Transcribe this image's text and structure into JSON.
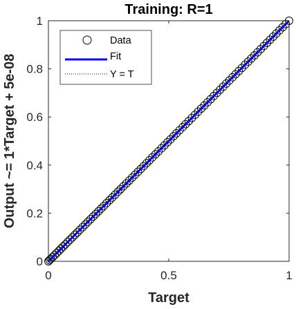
{
  "chart_data": {
    "type": "scatter",
    "title": "Training: R=1",
    "xlabel": "Target",
    "ylabel": "Output ~= 1*Target + 5e-08",
    "xlim": [
      0,
      1
    ],
    "ylim": [
      0,
      1
    ],
    "x_ticks": [
      "0",
      "0.5",
      "1"
    ],
    "y_ticks": [
      "0",
      "0.2",
      "0.4",
      "0.6",
      "0.8",
      "1"
    ],
    "grid": false,
    "legend_position": "top-left",
    "legend": [
      {
        "label": "Data",
        "style": "circle-marker"
      },
      {
        "label": "Fit",
        "style": "solid-line"
      },
      {
        "label": "Y = T",
        "style": "dotted-line"
      }
    ],
    "series": [
      {
        "name": "Data",
        "x": [
          0.0,
          0.005,
          0.01,
          0.018,
          0.026,
          0.035,
          0.044,
          0.052,
          0.061,
          0.07,
          0.08,
          0.09,
          0.1,
          0.11,
          0.12,
          0.131,
          0.142,
          0.153,
          0.164,
          0.175,
          0.186,
          0.197,
          0.208,
          0.219,
          0.23,
          0.242,
          0.254,
          0.265,
          0.277,
          0.289,
          0.3,
          0.312,
          0.324,
          0.336,
          0.348,
          0.36,
          0.372,
          0.384,
          0.396,
          0.408,
          0.42,
          0.432,
          0.445,
          0.457,
          0.47,
          0.482,
          0.495,
          0.507,
          0.52,
          0.532,
          0.545,
          0.558,
          0.57,
          0.583,
          0.596,
          0.609,
          0.622,
          0.635,
          0.648,
          0.661,
          0.674,
          0.687,
          0.7,
          0.713,
          0.726,
          0.739,
          0.752,
          0.765,
          0.778,
          0.791,
          0.804,
          0.817,
          0.83,
          0.843,
          0.856,
          0.869,
          0.882,
          0.895,
          0.908,
          0.921,
          0.934,
          0.947,
          0.96,
          0.973,
          0.986,
          1.0
        ],
        "y": [
          0.0,
          0.005,
          0.01,
          0.018,
          0.026,
          0.035,
          0.044,
          0.052,
          0.061,
          0.07,
          0.08,
          0.09,
          0.1,
          0.11,
          0.12,
          0.131,
          0.142,
          0.153,
          0.164,
          0.175,
          0.186,
          0.197,
          0.208,
          0.219,
          0.23,
          0.242,
          0.254,
          0.265,
          0.277,
          0.289,
          0.3,
          0.312,
          0.324,
          0.336,
          0.348,
          0.36,
          0.372,
          0.384,
          0.396,
          0.408,
          0.42,
          0.432,
          0.445,
          0.457,
          0.47,
          0.482,
          0.495,
          0.507,
          0.52,
          0.532,
          0.545,
          0.558,
          0.57,
          0.583,
          0.596,
          0.609,
          0.622,
          0.635,
          0.648,
          0.661,
          0.674,
          0.687,
          0.7,
          0.713,
          0.726,
          0.739,
          0.752,
          0.765,
          0.778,
          0.791,
          0.804,
          0.817,
          0.83,
          0.843,
          0.856,
          0.869,
          0.882,
          0.895,
          0.908,
          0.921,
          0.934,
          0.947,
          0.96,
          0.973,
          0.986,
          1.0
        ],
        "marker": "circle",
        "color": "#000000"
      },
      {
        "name": "Fit",
        "x": [
          0,
          1
        ],
        "y": [
          5e-08,
          1.00000005
        ],
        "color": "#0000ff"
      },
      {
        "name": "Y = T",
        "x": [
          0,
          1
        ],
        "y": [
          0,
          1
        ],
        "color": "#000000"
      }
    ]
  }
}
